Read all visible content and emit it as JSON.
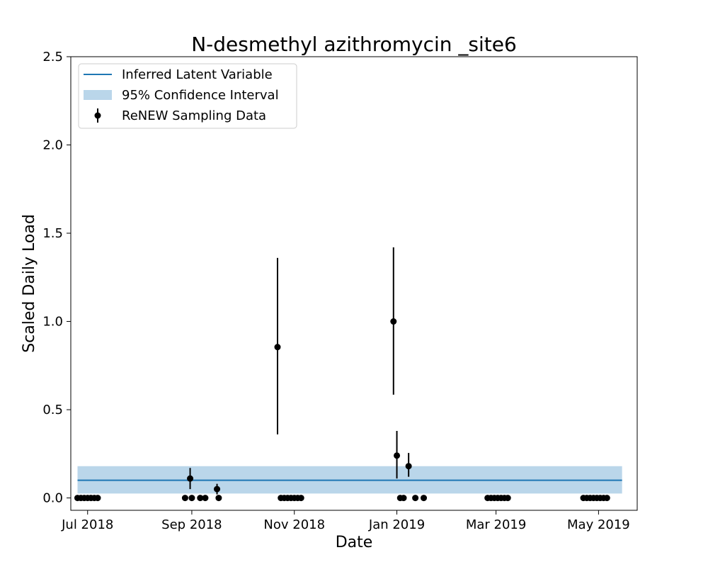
{
  "chart_data": {
    "type": "scatter",
    "title": "N-desmethyl azithromycin _site6",
    "xlabel": "Date",
    "ylabel": "Scaled Daily Load",
    "ylim": [
      -0.07,
      2.5
    ],
    "xlim": [
      "2018-06-21",
      "2019-05-24"
    ],
    "x_ticks": [
      {
        "date": "2018-07-01",
        "label": "Jul 2018"
      },
      {
        "date": "2018-09-01",
        "label": "Sep 2018"
      },
      {
        "date": "2018-11-01",
        "label": "Nov 2018"
      },
      {
        "date": "2019-01-01",
        "label": "Jan 2019"
      },
      {
        "date": "2019-03-01",
        "label": "Mar 2019"
      },
      {
        "date": "2019-05-01",
        "label": "May 2019"
      }
    ],
    "y_ticks": [
      {
        "value": 0.0,
        "label": "0.0"
      },
      {
        "value": 0.5,
        "label": "0.5"
      },
      {
        "value": 1.0,
        "label": "1.0"
      },
      {
        "value": 1.5,
        "label": "1.5"
      },
      {
        "value": 2.0,
        "label": "2.0"
      },
      {
        "value": 2.5,
        "label": "2.5"
      }
    ],
    "legend": {
      "placement": "top-left",
      "entries": [
        {
          "label": "Inferred Latent Variable",
          "kind": "line"
        },
        {
          "label": "95% Confidence Interval",
          "kind": "band"
        },
        {
          "label": "ReNEW Sampling Data",
          "kind": "errorbar"
        }
      ]
    },
    "colors": {
      "latent": "#1f77b4",
      "band": "#bad6ea",
      "points": "#000000"
    },
    "grid": false,
    "latent_line": {
      "x_start": "2018-06-25",
      "x_end": "2019-05-15",
      "value": 0.1
    },
    "confidence_band": {
      "x_start": "2018-06-25",
      "x_end": "2019-05-15",
      "lower": 0.025,
      "upper": 0.18
    },
    "series": [
      {
        "name": "ReNEW Sampling Data",
        "points": [
          {
            "x": "2018-06-25",
            "y": 0.0
          },
          {
            "x": "2018-06-27",
            "y": 0.0
          },
          {
            "x": "2018-06-29",
            "y": 0.0
          },
          {
            "x": "2018-07-01",
            "y": 0.0
          },
          {
            "x": "2018-07-03",
            "y": 0.0
          },
          {
            "x": "2018-07-05",
            "y": 0.0
          },
          {
            "x": "2018-07-07",
            "y": 0.0
          },
          {
            "x": "2018-08-28",
            "y": 0.0
          },
          {
            "x": "2018-08-31",
            "y": 0.11,
            "err_low": 0.05,
            "err_high": 0.17
          },
          {
            "x": "2018-09-01",
            "y": 0.0
          },
          {
            "x": "2018-09-06",
            "y": 0.0
          },
          {
            "x": "2018-09-09",
            "y": 0.0
          },
          {
            "x": "2018-09-16",
            "y": 0.05,
            "err_low": 0.02,
            "err_high": 0.08
          },
          {
            "x": "2018-09-17",
            "y": 0.0
          },
          {
            "x": "2018-10-22",
            "y": 0.855,
            "err_low": 0.36,
            "err_high": 1.36
          },
          {
            "x": "2018-10-24",
            "y": 0.0
          },
          {
            "x": "2018-10-26",
            "y": 0.0
          },
          {
            "x": "2018-10-28",
            "y": 0.0
          },
          {
            "x": "2018-10-30",
            "y": 0.0
          },
          {
            "x": "2018-11-01",
            "y": 0.0
          },
          {
            "x": "2018-11-03",
            "y": 0.0
          },
          {
            "x": "2018-11-05",
            "y": 0.0
          },
          {
            "x": "2018-12-30",
            "y": 1.0,
            "err_low": 0.585,
            "err_high": 1.42
          },
          {
            "x": "2019-01-01",
            "y": 0.24,
            "err_low": 0.11,
            "err_high": 0.38
          },
          {
            "x": "2019-01-03",
            "y": 0.0
          },
          {
            "x": "2019-01-05",
            "y": 0.0
          },
          {
            "x": "2019-01-08",
            "y": 0.18,
            "err_low": 0.12,
            "err_high": 0.255
          },
          {
            "x": "2019-01-12",
            "y": 0.0
          },
          {
            "x": "2019-01-17",
            "y": 0.0
          },
          {
            "x": "2019-02-24",
            "y": 0.0
          },
          {
            "x": "2019-02-26",
            "y": 0.0
          },
          {
            "x": "2019-02-28",
            "y": 0.0
          },
          {
            "x": "2019-03-02",
            "y": 0.0
          },
          {
            "x": "2019-03-04",
            "y": 0.0
          },
          {
            "x": "2019-03-06",
            "y": 0.0
          },
          {
            "x": "2019-03-08",
            "y": 0.0
          },
          {
            "x": "2019-04-22",
            "y": 0.0
          },
          {
            "x": "2019-04-24",
            "y": 0.0
          },
          {
            "x": "2019-04-26",
            "y": 0.0
          },
          {
            "x": "2019-04-28",
            "y": 0.0
          },
          {
            "x": "2019-04-30",
            "y": 0.0
          },
          {
            "x": "2019-05-02",
            "y": 0.0
          },
          {
            "x": "2019-05-04",
            "y": 0.0
          },
          {
            "x": "2019-05-06",
            "y": 0.0
          }
        ]
      }
    ]
  }
}
